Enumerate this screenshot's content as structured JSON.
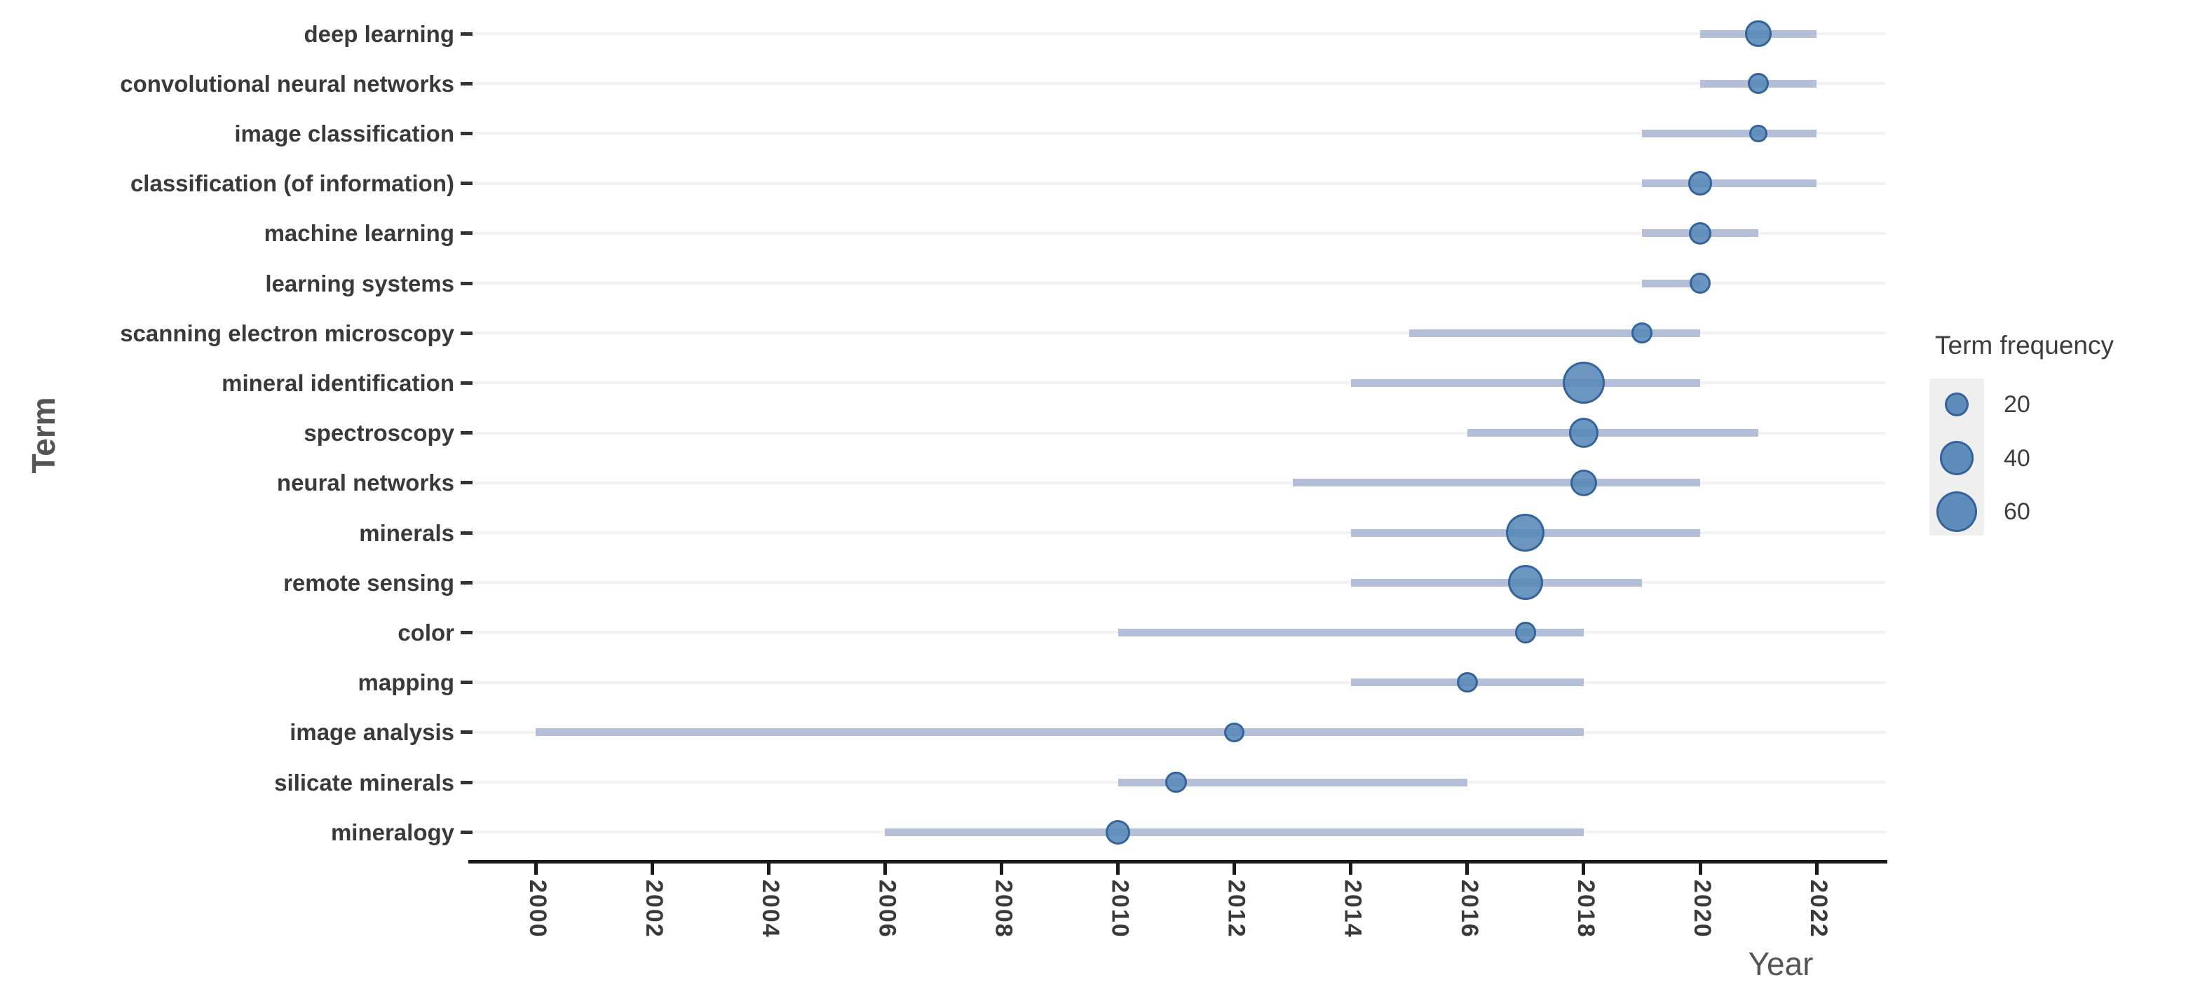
{
  "chart_data": {
    "type": "scatter",
    "title": "",
    "xlabel": "Year",
    "ylabel": "Term",
    "x_ticks": [
      2000,
      2002,
      2004,
      2006,
      2008,
      2010,
      2012,
      2014,
      2016,
      2018,
      2020,
      2022
    ],
    "x_range_shown": [
      1998.9,
      2023.3
    ],
    "grid": "horizontal-only",
    "legend": {
      "title": "Term frequency",
      "position": "right",
      "sizes": [
        20,
        40,
        60
      ]
    },
    "series": [
      {
        "term": "deep learning",
        "range": [
          2020,
          2022
        ],
        "peak_year": 2021,
        "frequency": 24
      },
      {
        "term": "convolutional neural networks",
        "range": [
          2020,
          2022
        ],
        "peak_year": 2021,
        "frequency": 16
      },
      {
        "term": "image classification",
        "range": [
          2019,
          2022
        ],
        "peak_year": 2021,
        "frequency": 11
      },
      {
        "term": "classification (of information)",
        "range": [
          2019,
          2022
        ],
        "peak_year": 2020,
        "frequency": 21
      },
      {
        "term": "machine learning",
        "range": [
          2019,
          2021
        ],
        "peak_year": 2020,
        "frequency": 18
      },
      {
        "term": "learning systems",
        "range": [
          2019,
          2020
        ],
        "peak_year": 2020,
        "frequency": 16
      },
      {
        "term": "scanning electron microscopy",
        "range": [
          2015,
          2020
        ],
        "peak_year": 2019,
        "frequency": 15
      },
      {
        "term": "mineral identification",
        "range": [
          2014,
          2020
        ],
        "peak_year": 2018,
        "frequency": 62
      },
      {
        "term": "spectroscopy",
        "range": [
          2016,
          2021
        ],
        "peak_year": 2018,
        "frequency": 31
      },
      {
        "term": "neural networks",
        "range": [
          2013,
          2020
        ],
        "peak_year": 2018,
        "frequency": 25
      },
      {
        "term": "minerals",
        "range": [
          2014,
          2020
        ],
        "peak_year": 2017,
        "frequency": 52
      },
      {
        "term": "remote sensing",
        "range": [
          2014,
          2019
        ],
        "peak_year": 2017,
        "frequency": 43
      },
      {
        "term": "color",
        "range": [
          2010,
          2018
        ],
        "peak_year": 2017,
        "frequency": 16
      },
      {
        "term": "mapping",
        "range": [
          2014,
          2018
        ],
        "peak_year": 2016,
        "frequency": 15
      },
      {
        "term": "image analysis",
        "range": [
          2000,
          2018
        ],
        "peak_year": 2012,
        "frequency": 14
      },
      {
        "term": "silicate minerals",
        "range": [
          2010,
          2016
        ],
        "peak_year": 2011,
        "frequency": 16
      },
      {
        "term": "mineralogy",
        "range": [
          2006,
          2018
        ],
        "peak_year": 2010,
        "frequency": 21
      }
    ],
    "colors": {
      "dot_fill": "#5687b7",
      "dot_stroke": "#2b5c94",
      "range_line": "#b5bed9",
      "grid_line": "#f2f2f2",
      "axis": "#1a1a1a",
      "tick_label": "#3a3a3a",
      "axis_title": "#555555",
      "legend_text": "#3d3d3d",
      "legend_key_bg": "#efefef"
    }
  }
}
